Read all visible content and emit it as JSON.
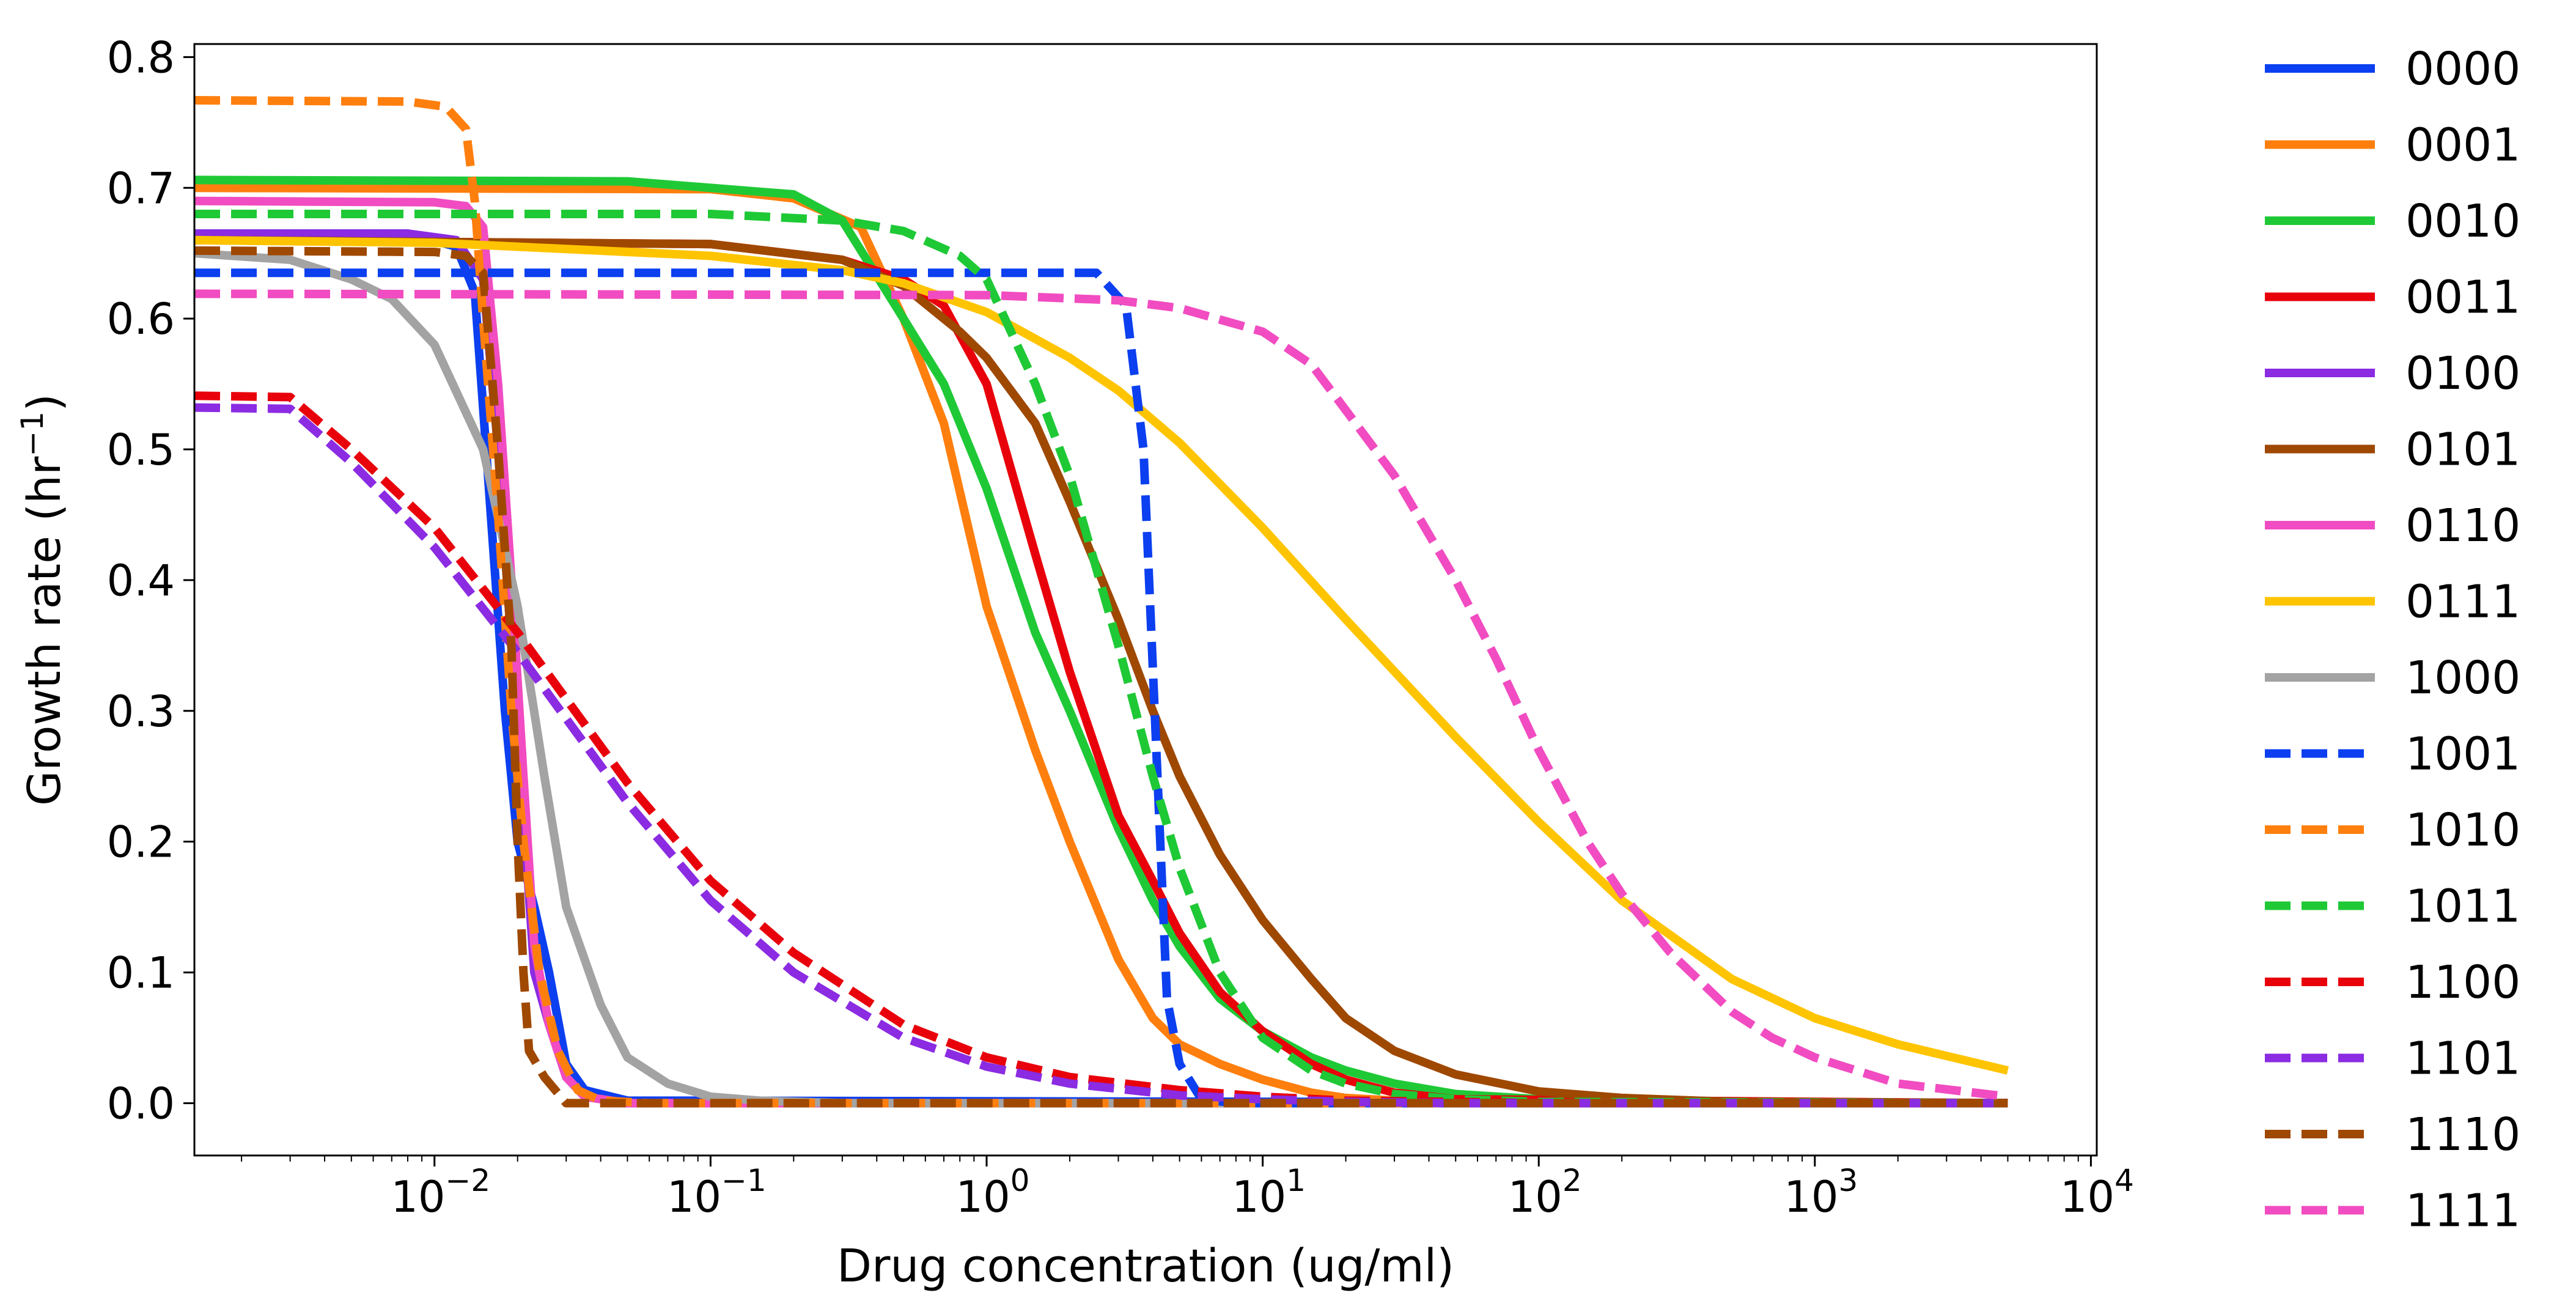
{
  "chart_data": {
    "type": "line",
    "title": "",
    "xlabel": "Drug concentration (ug/ml)",
    "ylabel_main": "Growth rate (hr",
    "ylabel_sup": "−1",
    "ylabel_tail": ")",
    "xscale": "log",
    "xlim": [
      0.00135,
      10500
    ],
    "ylim": [
      -0.04,
      0.81
    ],
    "grid": false,
    "legend_placement": "outside-right",
    "x_ticks": [
      {
        "value": 0.01,
        "base": "10",
        "exp": "−2"
      },
      {
        "value": 0.1,
        "base": "10",
        "exp": "−1"
      },
      {
        "value": 1,
        "base": "10",
        "exp": "0"
      },
      {
        "value": 10,
        "base": "10",
        "exp": "1"
      },
      {
        "value": 100,
        "base": "10",
        "exp": "2"
      },
      {
        "value": 1000,
        "base": "10",
        "exp": "3"
      },
      {
        "value": 10000,
        "base": "10",
        "exp": "4"
      }
    ],
    "y_ticks": [
      {
        "value": 0.0,
        "label": "0.0"
      },
      {
        "value": 0.1,
        "label": "0.1"
      },
      {
        "value": 0.2,
        "label": "0.2"
      },
      {
        "value": 0.3,
        "label": "0.3"
      },
      {
        "value": 0.4,
        "label": "0.4"
      },
      {
        "value": 0.5,
        "label": "0.5"
      },
      {
        "value": 0.6,
        "label": "0.6"
      },
      {
        "value": 0.7,
        "label": "0.7"
      },
      {
        "value": 0.8,
        "label": "0.8"
      }
    ],
    "series": [
      {
        "name": "0000",
        "color": "#0b3ff0",
        "dashed": false,
        "points": [
          [
            0.00135,
            0.665
          ],
          [
            0.008,
            0.665
          ],
          [
            0.012,
            0.655
          ],
          [
            0.014,
            0.62
          ],
          [
            0.016,
            0.45
          ],
          [
            0.018,
            0.3
          ],
          [
            0.02,
            0.2
          ],
          [
            0.023,
            0.15
          ],
          [
            0.026,
            0.1
          ],
          [
            0.03,
            0.03
          ],
          [
            0.035,
            0.01
          ],
          [
            0.05,
            0.002
          ],
          [
            5000,
            0.0
          ]
        ]
      },
      {
        "name": "0001",
        "color": "#ff7f0e",
        "dashed": false,
        "points": [
          [
            0.00135,
            0.7
          ],
          [
            0.1,
            0.699
          ],
          [
            0.2,
            0.692
          ],
          [
            0.35,
            0.67
          ],
          [
            0.5,
            0.6
          ],
          [
            0.7,
            0.52
          ],
          [
            1,
            0.38
          ],
          [
            1.5,
            0.27
          ],
          [
            2,
            0.2
          ],
          [
            3,
            0.11
          ],
          [
            4,
            0.065
          ],
          [
            5,
            0.045
          ],
          [
            7,
            0.03
          ],
          [
            10,
            0.018
          ],
          [
            15,
            0.008
          ],
          [
            20,
            0.004
          ],
          [
            30,
            0.002
          ],
          [
            50,
            0.0
          ],
          [
            5000,
            0.0
          ]
        ]
      },
      {
        "name": "0010",
        "color": "#1fc936",
        "dashed": false,
        "points": [
          [
            0.00135,
            0.706
          ],
          [
            0.05,
            0.705
          ],
          [
            0.2,
            0.695
          ],
          [
            0.3,
            0.675
          ],
          [
            0.5,
            0.6
          ],
          [
            0.7,
            0.55
          ],
          [
            1,
            0.47
          ],
          [
            1.5,
            0.36
          ],
          [
            2,
            0.3
          ],
          [
            3,
            0.21
          ],
          [
            4,
            0.155
          ],
          [
            5,
            0.12
          ],
          [
            7,
            0.08
          ],
          [
            10,
            0.055
          ],
          [
            15,
            0.035
          ],
          [
            20,
            0.025
          ],
          [
            30,
            0.015
          ],
          [
            50,
            0.007
          ],
          [
            100,
            0.003
          ],
          [
            200,
            0.001
          ],
          [
            5000,
            0.0
          ]
        ]
      },
      {
        "name": "0011",
        "color": "#e8000b",
        "dashed": false,
        "points": [
          [
            0.00135,
            0.66
          ],
          [
            0.1,
            0.657
          ],
          [
            0.3,
            0.645
          ],
          [
            0.5,
            0.63
          ],
          [
            0.7,
            0.61
          ],
          [
            1,
            0.55
          ],
          [
            1.5,
            0.42
          ],
          [
            2,
            0.33
          ],
          [
            3,
            0.22
          ],
          [
            4,
            0.17
          ],
          [
            5,
            0.13
          ],
          [
            7,
            0.085
          ],
          [
            10,
            0.055
          ],
          [
            15,
            0.03
          ],
          [
            20,
            0.018
          ],
          [
            30,
            0.008
          ],
          [
            50,
            0.003
          ],
          [
            5000,
            0.0
          ]
        ]
      },
      {
        "name": "0100",
        "color": "#8b2be2",
        "dashed": false,
        "points": [
          [
            0.00135,
            0.665
          ],
          [
            0.008,
            0.665
          ],
          [
            0.012,
            0.66
          ],
          [
            0.015,
            0.63
          ],
          [
            0.017,
            0.5
          ],
          [
            0.019,
            0.35
          ],
          [
            0.021,
            0.22
          ],
          [
            0.023,
            0.1
          ],
          [
            0.026,
            0.06
          ],
          [
            0.03,
            0.02
          ],
          [
            0.035,
            0.005
          ],
          [
            0.05,
            0.0
          ],
          [
            5000,
            0.0
          ]
        ]
      },
      {
        "name": "0101",
        "color": "#9f4800",
        "dashed": false,
        "points": [
          [
            0.00135,
            0.66
          ],
          [
            0.1,
            0.657
          ],
          [
            0.3,
            0.645
          ],
          [
            0.5,
            0.625
          ],
          [
            0.8,
            0.59
          ],
          [
            1,
            0.57
          ],
          [
            1.5,
            0.52
          ],
          [
            2,
            0.46
          ],
          [
            3,
            0.37
          ],
          [
            4,
            0.3
          ],
          [
            5,
            0.25
          ],
          [
            7,
            0.19
          ],
          [
            10,
            0.14
          ],
          [
            15,
            0.095
          ],
          [
            20,
            0.065
          ],
          [
            30,
            0.04
          ],
          [
            50,
            0.022
          ],
          [
            100,
            0.009
          ],
          [
            200,
            0.004
          ],
          [
            500,
            0.001
          ],
          [
            5000,
            0.0
          ]
        ]
      },
      {
        "name": "0110",
        "color": "#f14cc1",
        "dashed": false,
        "points": [
          [
            0.00135,
            0.69
          ],
          [
            0.01,
            0.689
          ],
          [
            0.013,
            0.686
          ],
          [
            0.015,
            0.67
          ],
          [
            0.017,
            0.55
          ],
          [
            0.019,
            0.4
          ],
          [
            0.021,
            0.25
          ],
          [
            0.023,
            0.12
          ],
          [
            0.026,
            0.06
          ],
          [
            0.03,
            0.02
          ],
          [
            0.035,
            0.005
          ],
          [
            0.05,
            0.0
          ],
          [
            5000,
            0.0
          ]
        ]
      },
      {
        "name": "0111",
        "color": "#ffc400",
        "dashed": false,
        "points": [
          [
            0.00135,
            0.66
          ],
          [
            0.01,
            0.658
          ],
          [
            0.1,
            0.648
          ],
          [
            0.3,
            0.637
          ],
          [
            0.5,
            0.627
          ],
          [
            1,
            0.605
          ],
          [
            2,
            0.57
          ],
          [
            3,
            0.545
          ],
          [
            5,
            0.505
          ],
          [
            10,
            0.44
          ],
          [
            20,
            0.37
          ],
          [
            50,
            0.28
          ],
          [
            100,
            0.215
          ],
          [
            200,
            0.155
          ],
          [
            500,
            0.095
          ],
          [
            1000,
            0.065
          ],
          [
            2000,
            0.045
          ],
          [
            5000,
            0.025
          ]
        ]
      },
      {
        "name": "1000",
        "color": "#a3a3a3",
        "dashed": false,
        "points": [
          [
            0.00135,
            0.65
          ],
          [
            0.003,
            0.645
          ],
          [
            0.005,
            0.63
          ],
          [
            0.007,
            0.615
          ],
          [
            0.01,
            0.58
          ],
          [
            0.015,
            0.5
          ],
          [
            0.02,
            0.38
          ],
          [
            0.025,
            0.25
          ],
          [
            0.03,
            0.15
          ],
          [
            0.04,
            0.075
          ],
          [
            0.05,
            0.035
          ],
          [
            0.07,
            0.015
          ],
          [
            0.1,
            0.005
          ],
          [
            0.15,
            0.002
          ],
          [
            0.3,
            0.0
          ],
          [
            5000,
            0.0
          ]
        ]
      },
      {
        "name": "1001",
        "color": "#0b3ff0",
        "dashed": true,
        "points": [
          [
            0.00135,
            0.635
          ],
          [
            1,
            0.635
          ],
          [
            2.5,
            0.635
          ],
          [
            3.2,
            0.61
          ],
          [
            3.7,
            0.5
          ],
          [
            4.1,
            0.28
          ],
          [
            4.5,
            0.08
          ],
          [
            5,
            0.03
          ],
          [
            6,
            0.003
          ],
          [
            8,
            0.0
          ],
          [
            5000,
            0.0
          ]
        ]
      },
      {
        "name": "1010",
        "color": "#ff7f0e",
        "dashed": true,
        "points": [
          [
            0.00135,
            0.767
          ],
          [
            0.008,
            0.766
          ],
          [
            0.011,
            0.762
          ],
          [
            0.013,
            0.745
          ],
          [
            0.014,
            0.69
          ],
          [
            0.015,
            0.6
          ],
          [
            0.017,
            0.45
          ],
          [
            0.019,
            0.3
          ],
          [
            0.021,
            0.2
          ],
          [
            0.024,
            0.1
          ],
          [
            0.028,
            0.04
          ],
          [
            0.033,
            0.01
          ],
          [
            0.04,
            0.002
          ],
          [
            0.06,
            0.0
          ],
          [
            5000,
            0.0
          ]
        ]
      },
      {
        "name": "1011",
        "color": "#1fc936",
        "dashed": true,
        "points": [
          [
            0.00135,
            0.68
          ],
          [
            0.1,
            0.68
          ],
          [
            0.3,
            0.675
          ],
          [
            0.5,
            0.667
          ],
          [
            0.8,
            0.648
          ],
          [
            1,
            0.63
          ],
          [
            1.5,
            0.55
          ],
          [
            2,
            0.48
          ],
          [
            3,
            0.35
          ],
          [
            4,
            0.25
          ],
          [
            5,
            0.18
          ],
          [
            7,
            0.1
          ],
          [
            10,
            0.05
          ],
          [
            15,
            0.025
          ],
          [
            20,
            0.015
          ],
          [
            30,
            0.007
          ],
          [
            50,
            0.003
          ],
          [
            100,
            0.001
          ],
          [
            5000,
            0.0
          ]
        ]
      },
      {
        "name": "1100",
        "color": "#e8000b",
        "dashed": true,
        "points": [
          [
            0.00135,
            0.541
          ],
          [
            0.003,
            0.54
          ],
          [
            0.005,
            0.5
          ],
          [
            0.01,
            0.44
          ],
          [
            0.02,
            0.36
          ],
          [
            0.05,
            0.245
          ],
          [
            0.1,
            0.17
          ],
          [
            0.2,
            0.115
          ],
          [
            0.5,
            0.06
          ],
          [
            1,
            0.035
          ],
          [
            2,
            0.02
          ],
          [
            5,
            0.01
          ],
          [
            10,
            0.005
          ],
          [
            20,
            0.002
          ],
          [
            50,
            0.001
          ],
          [
            100,
            0.0
          ],
          [
            5000,
            0.0
          ]
        ]
      },
      {
        "name": "1101",
        "color": "#8b2be2",
        "dashed": true,
        "points": [
          [
            0.00135,
            0.532
          ],
          [
            0.003,
            0.531
          ],
          [
            0.005,
            0.49
          ],
          [
            0.01,
            0.425
          ],
          [
            0.02,
            0.345
          ],
          [
            0.05,
            0.23
          ],
          [
            0.1,
            0.155
          ],
          [
            0.2,
            0.1
          ],
          [
            0.5,
            0.05
          ],
          [
            1,
            0.028
          ],
          [
            2,
            0.015
          ],
          [
            5,
            0.006
          ],
          [
            10,
            0.003
          ],
          [
            20,
            0.001
          ],
          [
            50,
            0.0
          ],
          [
            5000,
            0.0
          ]
        ]
      },
      {
        "name": "1110",
        "color": "#9f4800",
        "dashed": true,
        "points": [
          [
            0.00135,
            0.652
          ],
          [
            0.01,
            0.651
          ],
          [
            0.013,
            0.648
          ],
          [
            0.015,
            0.635
          ],
          [
            0.017,
            0.5
          ],
          [
            0.019,
            0.35
          ],
          [
            0.02,
            0.2
          ],
          [
            0.021,
            0.1
          ],
          [
            0.022,
            0.04
          ],
          [
            0.025,
            0.02
          ],
          [
            0.03,
            0.0
          ],
          [
            5000,
            0.0
          ]
        ]
      },
      {
        "name": "1111",
        "color": "#f14cc1",
        "dashed": true,
        "points": [
          [
            0.00135,
            0.619
          ],
          [
            1,
            0.618
          ],
          [
            3,
            0.614
          ],
          [
            5,
            0.608
          ],
          [
            10,
            0.59
          ],
          [
            15,
            0.565
          ],
          [
            20,
            0.53
          ],
          [
            30,
            0.48
          ],
          [
            50,
            0.4
          ],
          [
            70,
            0.34
          ],
          [
            100,
            0.27
          ],
          [
            150,
            0.2
          ],
          [
            200,
            0.16
          ],
          [
            300,
            0.115
          ],
          [
            500,
            0.07
          ],
          [
            700,
            0.05
          ],
          [
            1000,
            0.035
          ],
          [
            2000,
            0.015
          ],
          [
            5000,
            0.005
          ]
        ]
      }
    ]
  }
}
